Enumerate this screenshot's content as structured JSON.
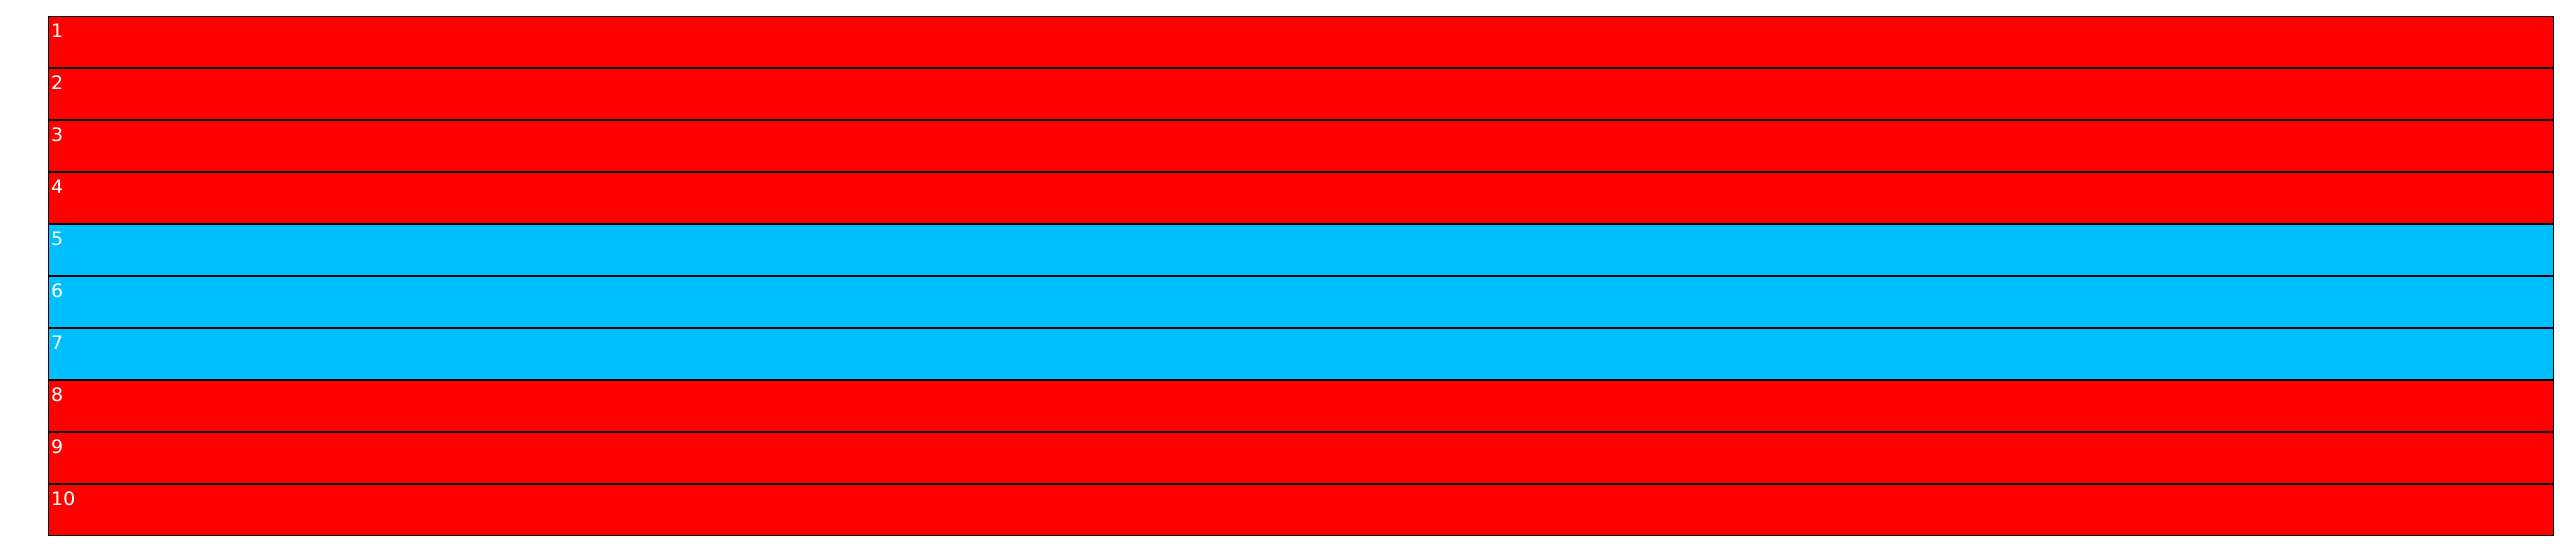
{
  "colors": {
    "default": "#ff0000",
    "highlight": "#00bfff",
    "text": "#ffffff",
    "border": "#000000"
  },
  "rows": [
    {
      "label": "1",
      "highlighted": false
    },
    {
      "label": "2",
      "highlighted": false
    },
    {
      "label": "3",
      "highlighted": false
    },
    {
      "label": "4",
      "highlighted": false
    },
    {
      "label": "5",
      "highlighted": true
    },
    {
      "label": "6",
      "highlighted": true
    },
    {
      "label": "7",
      "highlighted": true
    },
    {
      "label": "8",
      "highlighted": false
    },
    {
      "label": "9",
      "highlighted": false
    },
    {
      "label": "10",
      "highlighted": false
    }
  ]
}
